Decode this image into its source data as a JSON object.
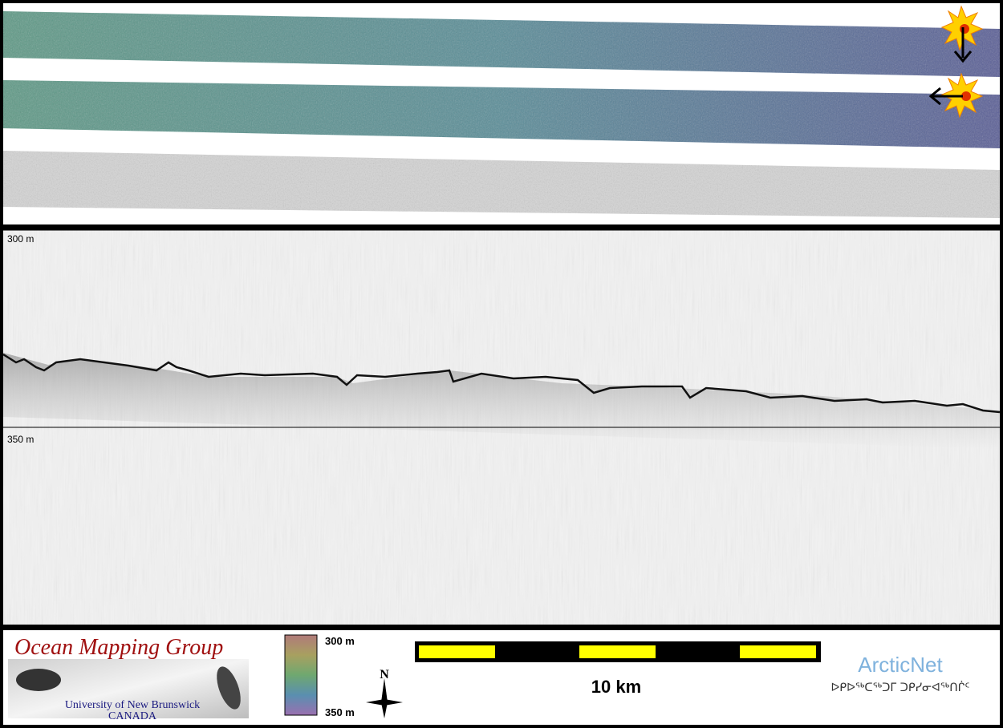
{
  "profile": {
    "depth_labels": [
      "300 m",
      "350 m"
    ]
  },
  "footer": {
    "logo": {
      "title": "Ocean Mapping Group",
      "university": "University of New Brunswick",
      "country": "CANADA"
    },
    "color_scale": {
      "top": "300 m",
      "bottom": "350 m"
    },
    "north": "N",
    "scale_bar": "10 km",
    "partner": {
      "name": "ArcticNet",
      "subtitle": "ᐅᑭᐅᖅᑕᖅᑐᒥ ᑐᑭᓯᓂᐊᖅᑎᒌᑦ"
    }
  }
}
